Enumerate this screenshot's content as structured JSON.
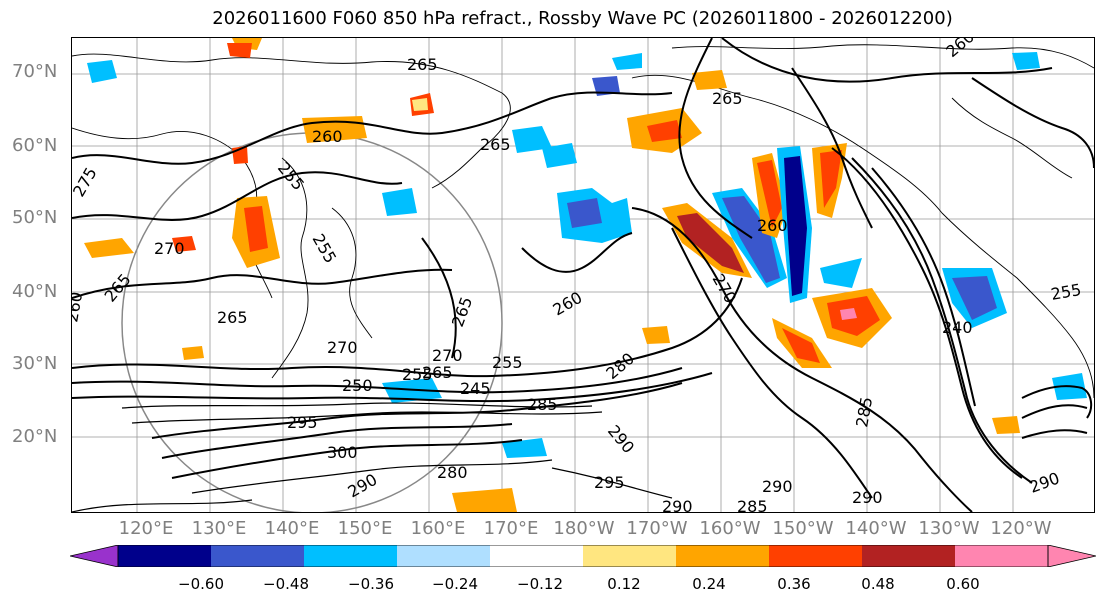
{
  "title": "2026011600 F060 850 hPa refract., Rossby Wave PC (2026011800 - 2026012200)",
  "lat_labels": [
    "70°N",
    "60°N",
    "50°N",
    "40°N",
    "30°N",
    "20°N"
  ],
  "lon_labels": [
    "120°E",
    "130°E",
    "140°E",
    "150°E",
    "160°E",
    "170°E",
    "180°W",
    "170°W",
    "160°W",
    "150°W",
    "140°W",
    "130°W",
    "120°W"
  ],
  "colorbar": {
    "ticks": [
      "−0.60",
      "−0.48",
      "−0.36",
      "−0.24",
      "−0.12",
      "0.12",
      "0.24",
      "0.36",
      "0.48",
      "0.60"
    ],
    "colors": [
      "#9932cc",
      "#00008b",
      "#3a57cc",
      "#00bfff",
      "#afdfff",
      "#ffffff",
      "#ffe680",
      "#ffa500",
      "#ff4000",
      "#b22222",
      "#ff85b0",
      "#ff85b0"
    ]
  },
  "contour_labels": [
    "265",
    "260",
    "255",
    "265",
    "270",
    "265",
    "255",
    "260",
    "265",
    "265",
    "275",
    "270",
    "265",
    "255",
    "260",
    "250",
    "245",
    "255",
    "270",
    "280",
    "285",
    "290",
    "295",
    "300",
    "290",
    "280",
    "290",
    "295",
    "265",
    "260",
    "260",
    "270",
    "255",
    "240",
    "285",
    "290",
    "290",
    "285",
    "290"
  ]
}
